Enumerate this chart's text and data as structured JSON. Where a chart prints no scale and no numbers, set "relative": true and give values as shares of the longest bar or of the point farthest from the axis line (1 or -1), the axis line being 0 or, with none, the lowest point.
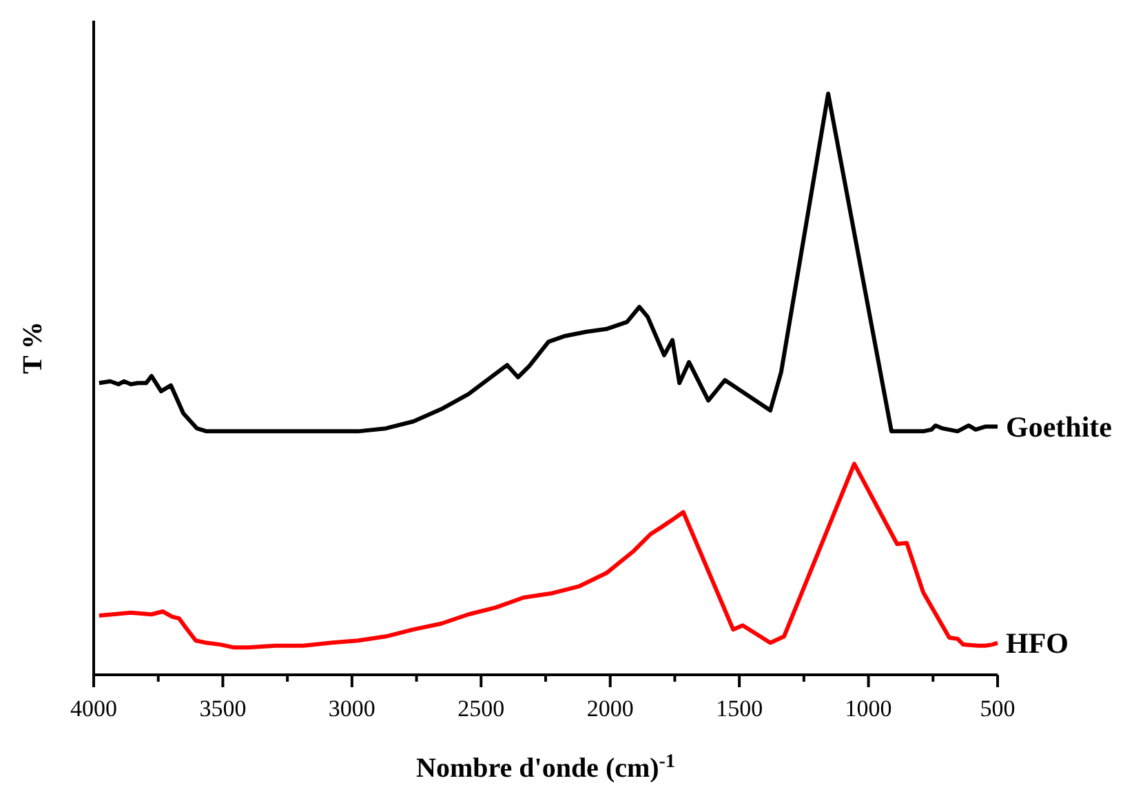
{
  "chart_data": {
    "type": "line",
    "xlabel": "Nombre d'onde (cm)$^{-1}$",
    "ylabel": "T %",
    "relative": true,
    "legend": false,
    "grid": false,
    "marker": "none",
    "line_style": "solid",
    "xlim": [
      4000,
      500
    ],
    "xticks": [
      4000,
      {
        "value": 3750,
        "label": null
      },
      3500,
      {
        "value": 3250,
        "label": null
      },
      3000,
      {
        "value": 2750,
        "label": null
      },
      2500,
      {
        "value": 2250,
        "label": null
      },
      2000,
      {
        "value": 1750,
        "label": null
      },
      1500,
      {
        "value": 1250,
        "label": null
      },
      1000,
      {
        "value": 750,
        "label": null
      },
      500
    ],
    "series": [
      {
        "name": "Goethite",
        "color": "#000000",
        "x": [
          3979,
          3936,
          3904,
          3883,
          3856,
          3829,
          3797,
          3776,
          3739,
          3701,
          3653,
          3600,
          3563,
          3296,
          2976,
          2869,
          2762,
          2655,
          2549,
          2399,
          2357,
          2314,
          2239,
          2175,
          2095,
          2015,
          1935,
          1887,
          1855,
          1791,
          1759,
          1732,
          1695,
          1620,
          1556,
          1380,
          1338,
          1156,
          911,
          788,
          756,
          740,
          713,
          655,
          612,
          585,
          548,
          500
        ],
        "values": [
          0.502,
          0.505,
          0.5,
          0.505,
          0.5,
          0.502,
          0.502,
          0.514,
          0.488,
          0.498,
          0.45,
          0.424,
          0.419,
          0.419,
          0.419,
          0.424,
          0.436,
          0.457,
          0.483,
          0.533,
          0.512,
          0.531,
          0.573,
          0.583,
          0.59,
          0.595,
          0.607,
          0.633,
          0.616,
          0.55,
          0.576,
          0.502,
          0.538,
          0.472,
          0.507,
          0.455,
          0.521,
          1,
          0.419,
          0.419,
          0.422,
          0.429,
          0.424,
          0.419,
          0.429,
          0.422,
          0.427,
          0.427
        ]
      },
      {
        "name": "HFO",
        "color": "#ff0000",
        "x": [
          3979,
          3856,
          3776,
          3733,
          3696,
          3669,
          3643,
          3605,
          3563,
          3509,
          3456,
          3402,
          3296,
          3189,
          3082,
          2976,
          2869,
          2762,
          2655,
          2549,
          2442,
          2335,
          2229,
          2122,
          2015,
          1909,
          1844,
          1802,
          1765,
          1717,
          1524,
          1487,
          1380,
          1327,
          1055,
          889,
          852,
          788,
          687,
          655,
          633,
          575,
          548,
          521,
          500
        ],
        "values": [
          0.102,
          0.107,
          0.104,
          0.109,
          0.1,
          0.097,
          0.081,
          0.059,
          0.055,
          0.052,
          0.047,
          0.047,
          0.05,
          0.05,
          0.055,
          0.059,
          0.066,
          0.078,
          0.088,
          0.104,
          0.116,
          0.133,
          0.14,
          0.152,
          0.175,
          0.213,
          0.242,
          0.254,
          0.265,
          0.28,
          0.078,
          0.085,
          0.055,
          0.066,
          0.363,
          0.225,
          0.227,
          0.142,
          0.064,
          0.062,
          0.052,
          0.05,
          0.05,
          0.052,
          0.055
        ]
      }
    ]
  }
}
